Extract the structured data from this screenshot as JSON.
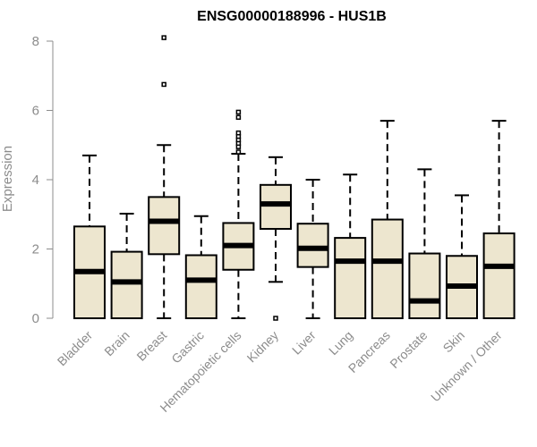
{
  "chart_data": {
    "type": "box",
    "title": "ENSG00000188996 - HUS1B",
    "xlabel": "",
    "ylabel": "Expression",
    "ylim": [
      0,
      8.2
    ],
    "yticks": [
      0,
      2,
      4,
      6,
      8
    ],
    "colors": {
      "box_fill": "#ede6cf",
      "box_stroke": "#000000",
      "axis": "#8c8c8c"
    },
    "categories": [
      "Bladder",
      "Brain",
      "Breast",
      "Gastric",
      "Hematopoietic cells",
      "Kidney",
      "Liver",
      "Lung",
      "Pancreas",
      "Prostate",
      "Skin",
      "Unknown / Other"
    ],
    "boxes": [
      {
        "whisker_low": 0,
        "q1": 0,
        "median": 1.35,
        "q3": 2.65,
        "whisker_high": 4.7,
        "outliers": []
      },
      {
        "whisker_low": 0,
        "q1": 0,
        "median": 1.05,
        "q3": 1.92,
        "whisker_high": 3.02,
        "outliers": []
      },
      {
        "whisker_low": 0,
        "q1": 1.85,
        "median": 2.8,
        "q3": 3.5,
        "whisker_high": 5.0,
        "outliers": [
          6.75,
          8.1
        ]
      },
      {
        "whisker_low": 0,
        "q1": 0,
        "median": 1.1,
        "q3": 1.82,
        "whisker_high": 2.95,
        "outliers": []
      },
      {
        "whisker_low": 0,
        "q1": 1.4,
        "median": 2.1,
        "q3": 2.75,
        "whisker_high": 4.75,
        "outliers": [
          4.8,
          4.95,
          5.05,
          5.15,
          5.25,
          5.35,
          5.8,
          5.95
        ]
      },
      {
        "whisker_low": 1.05,
        "q1": 2.58,
        "median": 3.3,
        "q3": 3.85,
        "whisker_high": 4.65,
        "outliers": [
          0
        ]
      },
      {
        "whisker_low": 0,
        "q1": 1.48,
        "median": 2.02,
        "q3": 2.73,
        "whisker_high": 4.0,
        "outliers": []
      },
      {
        "whisker_low": 0,
        "q1": 0,
        "median": 1.65,
        "q3": 2.32,
        "whisker_high": 4.15,
        "outliers": []
      },
      {
        "whisker_low": 0,
        "q1": 0,
        "median": 1.65,
        "q3": 2.85,
        "whisker_high": 5.7,
        "outliers": []
      },
      {
        "whisker_low": 0,
        "q1": 0,
        "median": 0.5,
        "q3": 1.87,
        "whisker_high": 4.3,
        "outliers": []
      },
      {
        "whisker_low": 0,
        "q1": 0,
        "median": 0.93,
        "q3": 1.8,
        "whisker_high": 3.55,
        "outliers": []
      },
      {
        "whisker_low": 0,
        "q1": 0,
        "median": 1.5,
        "q3": 2.45,
        "whisker_high": 5.7,
        "outliers": []
      }
    ]
  }
}
